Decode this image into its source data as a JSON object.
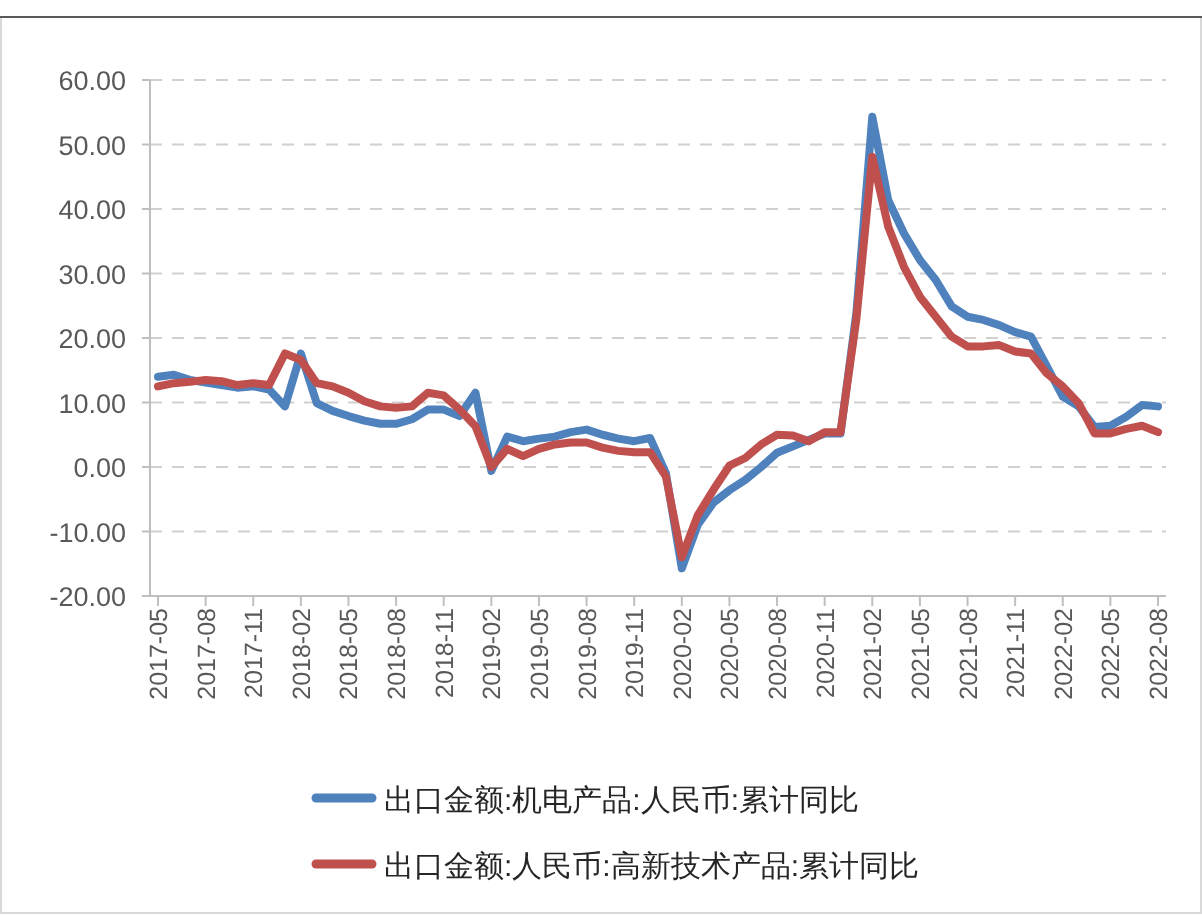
{
  "chart_data": {
    "type": "line",
    "categories": [
      "2017-05",
      null,
      null,
      "2017-08",
      null,
      null,
      "2017-11",
      null,
      null,
      "2018-02",
      null,
      null,
      "2018-05",
      null,
      null,
      "2018-08",
      null,
      null,
      "2018-11",
      null,
      null,
      "2019-02",
      null,
      null,
      "2019-05",
      null,
      null,
      "2019-08",
      null,
      null,
      "2019-11",
      null,
      null,
      "2020-02",
      null,
      null,
      "2020-05",
      null,
      null,
      "2020-08",
      null,
      null,
      "2020-11",
      null,
      null,
      "2021-02",
      null,
      null,
      "2021-05",
      null,
      null,
      "2021-08",
      null,
      null,
      "2021-11",
      null,
      null,
      "2022-02",
      null,
      null,
      "2022-05",
      null,
      null,
      "2022-08"
    ],
    "ylim": [
      -20,
      60
    ],
    "yticks": [
      {
        "value": -20,
        "label": "-20.00"
      },
      {
        "value": -10,
        "label": "-10.00"
      },
      {
        "value": 0,
        "label": "0.00"
      },
      {
        "value": 10,
        "label": "10.00"
      },
      {
        "value": 20,
        "label": "20.00"
      },
      {
        "value": 30,
        "label": "30.00"
      },
      {
        "value": 40,
        "label": "40.00"
      },
      {
        "value": 50,
        "label": "50.00"
      },
      {
        "value": 60,
        "label": "60.00"
      }
    ],
    "grid": "y",
    "legend": "bottom",
    "series": [
      {
        "name": "出口金额:机电产品:人民币:累计同比",
        "color": "#4f81bd",
        "values": [
          14,
          14.3,
          13.5,
          13.1,
          12.7,
          12.3,
          12.5,
          12,
          9.4,
          17.6,
          9.9,
          8.7,
          7.9,
          7.2,
          6.7,
          6.7,
          7.4,
          8.9,
          8.9,
          7.9,
          11.5,
          -0.6,
          4.7,
          4,
          4.4,
          4.7,
          5.4,
          5.8,
          5,
          4.4,
          4,
          4.5,
          -1,
          -15.7,
          -9,
          -5.5,
          -3.6,
          -2,
          0,
          2.2,
          3.2,
          4.2,
          5.2,
          5.2,
          24,
          54.3,
          41.4,
          36.2,
          32.1,
          29,
          24.9,
          23.3,
          22.8,
          22,
          20.9,
          20.2,
          15.6,
          10.9,
          9.4,
          6.2,
          6.4,
          7.8,
          9.6,
          9.4
        ]
      },
      {
        "name": "出口金额:人民币:高新技术产品:累计同比",
        "color": "#c0504d",
        "values": [
          12.5,
          13,
          13.2,
          13.5,
          13.3,
          12.7,
          13,
          12.7,
          17.6,
          16.6,
          13,
          12.5,
          11.5,
          10.2,
          9.4,
          9.2,
          9.4,
          11.5,
          11.1,
          8.9,
          6.3,
          0,
          2.8,
          1.7,
          2.8,
          3.5,
          3.8,
          3.8,
          3,
          2.5,
          2.3,
          2.3,
          -1.5,
          -14,
          -7.5,
          -3.5,
          0.2,
          1.4,
          3.5,
          5,
          4.9,
          4,
          5.4,
          5.4,
          23,
          48.1,
          37.3,
          31,
          26.4,
          23.3,
          20.2,
          18.7,
          18.7,
          18.9,
          17.9,
          17.6,
          14.5,
          12.5,
          9.9,
          5.2,
          5.2,
          5.9,
          6.4,
          5.4
        ]
      }
    ]
  }
}
